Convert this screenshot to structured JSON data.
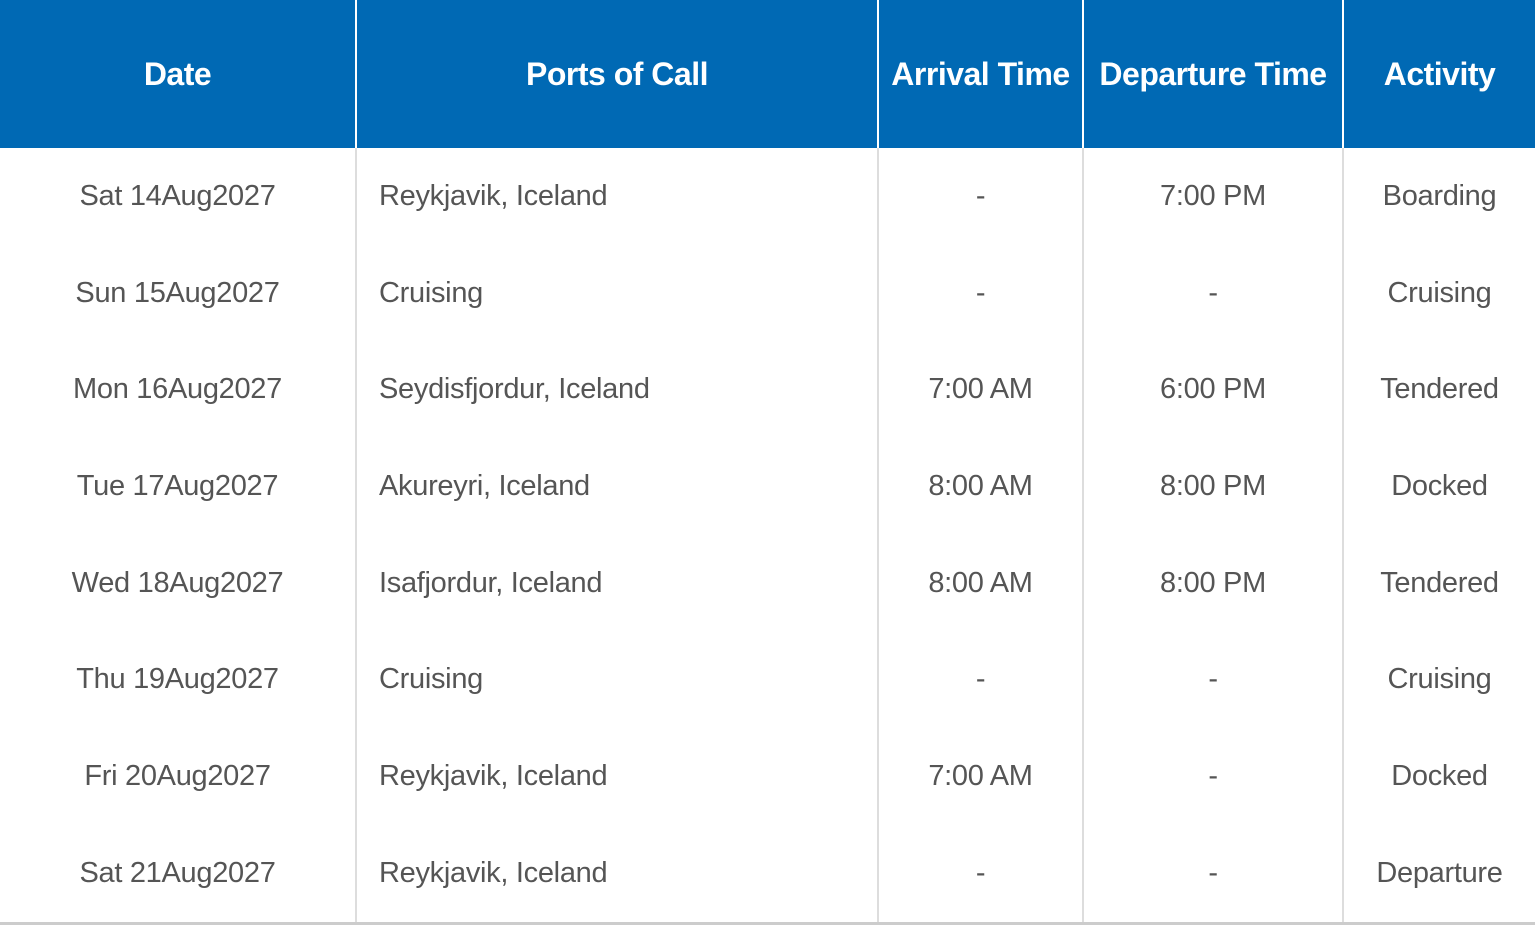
{
  "colors": {
    "header_bg": "#0069b4",
    "header_text": "#ffffff",
    "body_text": "#555555"
  },
  "table": {
    "headers": [
      "Date",
      "Ports of Call",
      "Arrival Time",
      "Departure Time",
      "Activity"
    ],
    "rows": [
      [
        "Sat 14Aug2027",
        "Reykjavik, Iceland",
        "-",
        "7:00 PM",
        "Boarding"
      ],
      [
        "Sun 15Aug2027",
        "Cruising",
        "-",
        "-",
        "Cruising"
      ],
      [
        "Mon 16Aug2027",
        "Seydisfjordur, Iceland",
        "7:00 AM",
        "6:00 PM",
        "Tendered"
      ],
      [
        "Tue 17Aug2027",
        "Akureyri, Iceland",
        "8:00 AM",
        "8:00 PM",
        "Docked"
      ],
      [
        "Wed 18Aug2027",
        "Isafjordur, Iceland",
        "8:00 AM",
        "8:00 PM",
        "Tendered"
      ],
      [
        "Thu 19Aug2027",
        "Cruising",
        "-",
        "-",
        "Cruising"
      ],
      [
        "Fri 20Aug2027",
        "Reykjavik, Iceland",
        "7:00 AM",
        "-",
        "Docked"
      ],
      [
        "Sat 21Aug2027",
        "Reykjavik, Iceland",
        "-",
        "-",
        "Departure"
      ]
    ]
  }
}
